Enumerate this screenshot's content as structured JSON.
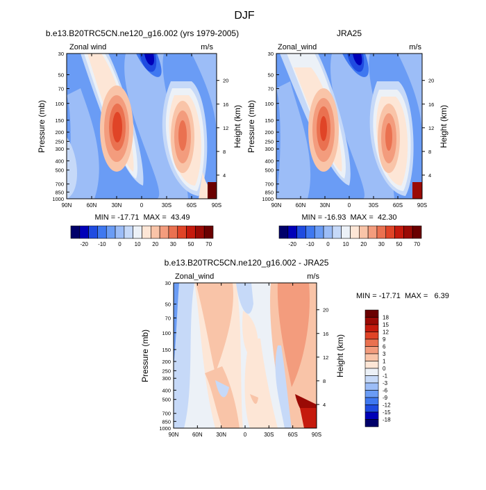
{
  "page_title": "DJF",
  "colorbar_colors": [
    "#00006a",
    "#0000b8",
    "#1f4be0",
    "#3f78f0",
    "#6a9cf5",
    "#9cbdf7",
    "#c6d9f8",
    "#ecf1f7",
    "#fde6d6",
    "#f9c4a8",
    "#f39c7d",
    "#ea7150",
    "#e04427",
    "#c51a0d",
    "#9a0a05",
    "#6a0000"
  ],
  "chart_data": [
    {
      "type": "heatmap",
      "title": "b.e13.B20TRC5CN.ne120_g16.002 (yrs 1979-2005)",
      "left_label": "Zonal wind",
      "units": "m/s",
      "ylabel": "Pressure (mb)",
      "ylabel_right": "Height (km)",
      "x_ticks": [
        "90N",
        "60N",
        "30N",
        "0",
        "30S",
        "60S",
        "90S"
      ],
      "y_ticks": [
        "30",
        "50",
        "70",
        "100",
        "150",
        "200",
        "250",
        "300",
        "400",
        "500",
        "700",
        "850",
        "1000"
      ],
      "y_ticks_right": [
        "20",
        "16",
        "12",
        "8",
        "4"
      ],
      "min_max": "MIN = -17.71  MAX =  43.49",
      "colorbar_labels": [
        "-20",
        "-10",
        "0",
        "10",
        "20",
        "30",
        "50",
        "70"
      ],
      "ylim": [
        1000,
        30
      ],
      "features": [
        {
          "lat": 30,
          "p": 180,
          "value": 43.49
        },
        {
          "lat": -45,
          "p": 220,
          "value": 30
        },
        {
          "lat": 5,
          "p": 40,
          "value": -17.71
        }
      ]
    },
    {
      "type": "heatmap",
      "title": "JRA25",
      "left_label": "Zonal_wind",
      "units": "m/s",
      "ylabel": "Pressure (mb)",
      "ylabel_right": "Height (km)",
      "x_ticks": [
        "90N",
        "60N",
        "30N",
        "0",
        "30S",
        "60S",
        "90S"
      ],
      "y_ticks": [
        "30",
        "50",
        "70",
        "100",
        "150",
        "200",
        "250",
        "300",
        "400",
        "500",
        "700",
        "850",
        "1000"
      ],
      "y_ticks_right": [
        "20",
        "16",
        "12",
        "8",
        "4"
      ],
      "min_max": "MIN = -16.93  MAX =  42.30",
      "colorbar_labels": [
        "-20",
        "-10",
        "0",
        "10",
        "20",
        "30",
        "50",
        "70"
      ],
      "ylim": [
        1000,
        30
      ],
      "features": [
        {
          "lat": 30,
          "p": 190,
          "value": 42.3
        },
        {
          "lat": -45,
          "p": 220,
          "value": 30
        },
        {
          "lat": 5,
          "p": 40,
          "value": -16.93
        }
      ]
    },
    {
      "type": "heatmap",
      "title": "b.e13.B20TRC5CN.ne120_g16.002 - JRA25",
      "left_label": "Zonal_wind",
      "units": "m/s",
      "ylabel": "Pressure (mb)",
      "ylabel_right": "Height (km)",
      "x_ticks": [
        "90N",
        "60N",
        "30N",
        "0",
        "30S",
        "60S",
        "90S"
      ],
      "y_ticks": [
        "30",
        "50",
        "70",
        "100",
        "150",
        "200",
        "250",
        "300",
        "400",
        "500",
        "700",
        "850",
        "1000"
      ],
      "y_ticks_right": [
        "20",
        "16",
        "12",
        "8",
        "4"
      ],
      "min_max": "MIN = -17.71  MAX =   6.39",
      "colorbar_labels": [
        "18",
        "15",
        "12",
        "9",
        "6",
        "3",
        "1",
        "0",
        "-1",
        "-3",
        "-6",
        "-9",
        "-12",
        "-15",
        "-18"
      ],
      "ylim": [
        1000,
        30
      ]
    }
  ]
}
